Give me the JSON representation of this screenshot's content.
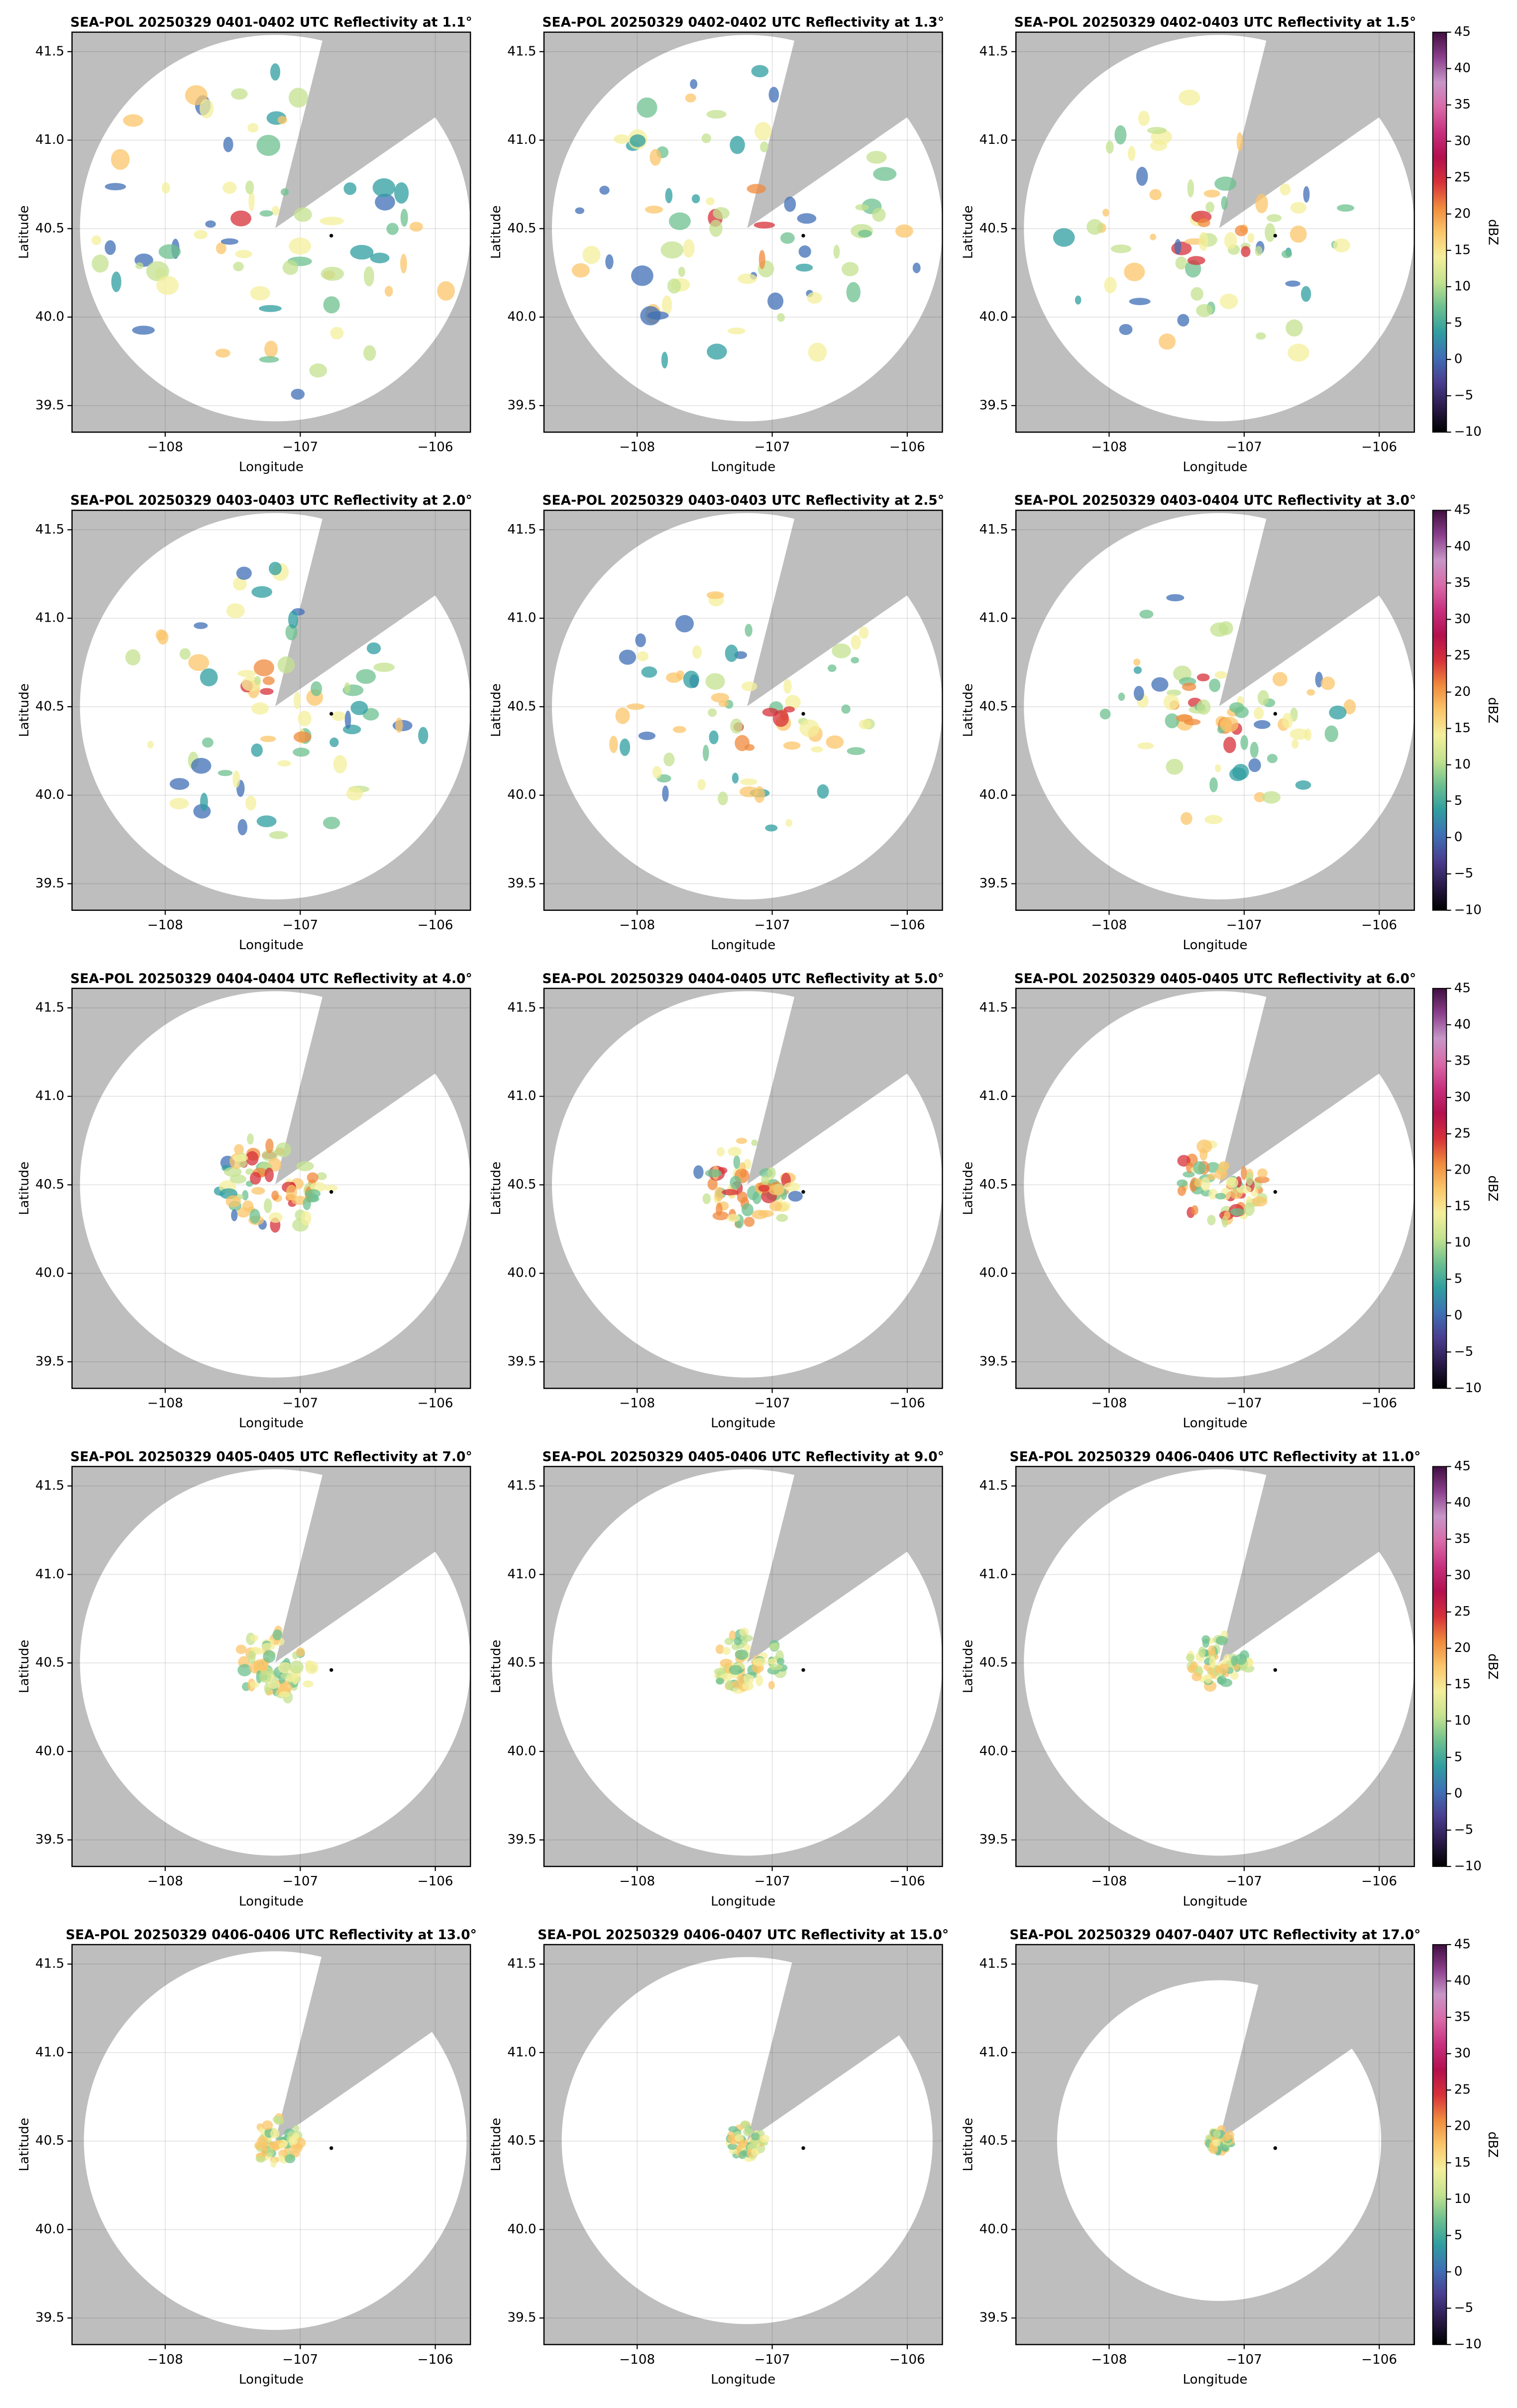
{
  "chart_data": [
    {
      "type": "ppi",
      "title": "SEA-POL 20250329 0401-0402 UTC Reflectivity at 1.1°",
      "xlabel": "Longitude",
      "ylabel": "Latitude",
      "xlim": [
        -108.69,
        -105.74
      ],
      "ylim": [
        39.35,
        41.61
      ],
      "xticks": [
        {
          "value": -108,
          "label": "−108"
        },
        {
          "value": -107,
          "label": "−107"
        },
        {
          "value": -106,
          "label": "−106"
        }
      ],
      "yticks": [
        39.5,
        {
          "value": 40,
          "label": "40.0"
        },
        40.5,
        {
          "value": 41,
          "label": "41.0"
        },
        41.5
      ],
      "grid": true,
      "marker": {
        "x": -106.77,
        "y": 40.46
      }
    },
    {
      "type": "ppi",
      "title": "SEA-POL 20250329 0402-0402 UTC Reflectivity at 1.3°",
      "xlabel": "Longitude",
      "ylabel": "Latitude",
      "xlim": [
        -108.69,
        -105.74
      ],
      "ylim": [
        39.35,
        41.61
      ],
      "xticks": [
        {
          "value": -108,
          "label": "−108"
        },
        {
          "value": -107,
          "label": "−107"
        },
        {
          "value": -106,
          "label": "−106"
        }
      ],
      "yticks": [
        39.5,
        {
          "value": 40,
          "label": "40.0"
        },
        40.5,
        {
          "value": 41,
          "label": "41.0"
        },
        41.5
      ],
      "grid": true,
      "marker": {
        "x": -106.77,
        "y": 40.46
      }
    },
    {
      "type": "ppi",
      "title": "SEA-POL 20250329 0402-0403 UTC Reflectivity at 1.5°",
      "xlabel": "Longitude",
      "ylabel": "Latitude",
      "xlim": [
        -108.69,
        -105.74
      ],
      "ylim": [
        39.35,
        41.61
      ],
      "xticks": [
        {
          "value": -108,
          "label": "−108"
        },
        {
          "value": -107,
          "label": "−107"
        },
        {
          "value": -106,
          "label": "−106"
        }
      ],
      "yticks": [
        39.5,
        {
          "value": 40,
          "label": "40.0"
        },
        40.5,
        {
          "value": 41,
          "label": "41.0"
        },
        41.5
      ],
      "grid": true,
      "marker": {
        "x": -106.77,
        "y": 40.46
      },
      "colorbar": {
        "label": "dBZ",
        "lim": [
          -10,
          45
        ],
        "ticks": [
          {
            "value": -10,
            "label": "−10"
          },
          {
            "value": -5,
            "label": "−5"
          },
          0,
          5,
          10,
          15,
          20,
          25,
          30,
          35,
          40,
          45
        ],
        "colormap": [
          "#000000",
          "#2a1a4a",
          "#4a3d8f",
          "#3f6fb5",
          "#2f9ea0",
          "#6cc08f",
          "#c3e28f",
          "#f4ef9b",
          "#fbc56a",
          "#f08a3c",
          "#d7303a",
          "#b3104f",
          "#c7307e",
          "#d96aa8",
          "#c796c8",
          "#8c3f8c",
          "#3f0f3f"
        ]
      }
    },
    {
      "type": "ppi",
      "title": "SEA-POL 20250329 0403-0403 UTC Reflectivity at 2.0°",
      "xlabel": "Longitude",
      "ylabel": "Latitude",
      "xlim": [
        -108.69,
        -105.74
      ],
      "ylim": [
        39.35,
        41.61
      ],
      "xticks": [
        {
          "value": -108,
          "label": "−108"
        },
        {
          "value": -107,
          "label": "−107"
        },
        {
          "value": -106,
          "label": "−106"
        }
      ],
      "yticks": [
        39.5,
        {
          "value": 40,
          "label": "40.0"
        },
        40.5,
        {
          "value": 41,
          "label": "41.0"
        },
        41.5
      ],
      "grid": true,
      "marker": {
        "x": -106.77,
        "y": 40.46
      }
    },
    {
      "type": "ppi",
      "title": "SEA-POL 20250329 0403-0403 UTC Reflectivity at 2.5°",
      "xlabel": "Longitude",
      "ylabel": "Latitude",
      "xlim": [
        -108.69,
        -105.74
      ],
      "ylim": [
        39.35,
        41.61
      ],
      "xticks": [
        {
          "value": -108,
          "label": "−108"
        },
        {
          "value": -107,
          "label": "−107"
        },
        {
          "value": -106,
          "label": "−106"
        }
      ],
      "yticks": [
        39.5,
        {
          "value": 40,
          "label": "40.0"
        },
        40.5,
        {
          "value": 41,
          "label": "41.0"
        },
        41.5
      ],
      "grid": true,
      "marker": {
        "x": -106.77,
        "y": 40.46
      }
    },
    {
      "type": "ppi",
      "title": "SEA-POL 20250329 0403-0404 UTC Reflectivity at 3.0°",
      "xlabel": "Longitude",
      "ylabel": "Latitude",
      "xlim": [
        -108.69,
        -105.74
      ],
      "ylim": [
        39.35,
        41.61
      ],
      "xticks": [
        {
          "value": -108,
          "label": "−108"
        },
        {
          "value": -107,
          "label": "−107"
        },
        {
          "value": -106,
          "label": "−106"
        }
      ],
      "yticks": [
        39.5,
        {
          "value": 40,
          "label": "40.0"
        },
        40.5,
        {
          "value": 41,
          "label": "41.0"
        },
        41.5
      ],
      "grid": true,
      "marker": {
        "x": -106.77,
        "y": 40.46
      },
      "colorbar": {
        "label": "dBZ",
        "lim": [
          -10,
          45
        ],
        "ticks": [
          {
            "value": -10,
            "label": "−10"
          },
          {
            "value": -5,
            "label": "−5"
          },
          0,
          5,
          10,
          15,
          20,
          25,
          30,
          35,
          40,
          45
        ],
        "colormap": [
          "#000000",
          "#2a1a4a",
          "#4a3d8f",
          "#3f6fb5",
          "#2f9ea0",
          "#6cc08f",
          "#c3e28f",
          "#f4ef9b",
          "#fbc56a",
          "#f08a3c",
          "#d7303a",
          "#b3104f",
          "#c7307e",
          "#d96aa8",
          "#c796c8",
          "#8c3f8c",
          "#3f0f3f"
        ]
      }
    },
    {
      "type": "ppi",
      "title": "SEA-POL 20250329 0404-0404 UTC Reflectivity at 4.0°",
      "xlabel": "Longitude",
      "ylabel": "Latitude",
      "xlim": [
        -108.69,
        -105.74
      ],
      "ylim": [
        39.35,
        41.61
      ],
      "xticks": [
        {
          "value": -108,
          "label": "−108"
        },
        {
          "value": -107,
          "label": "−107"
        },
        {
          "value": -106,
          "label": "−106"
        }
      ],
      "yticks": [
        39.5,
        {
          "value": 40,
          "label": "40.0"
        },
        40.5,
        {
          "value": 41,
          "label": "41.0"
        },
        41.5
      ],
      "grid": true,
      "marker": {
        "x": -106.77,
        "y": 40.46
      }
    },
    {
      "type": "ppi",
      "title": "SEA-POL 20250329 0404-0405 UTC Reflectivity at 5.0°",
      "xlabel": "Longitude",
      "ylabel": "Latitude",
      "xlim": [
        -108.69,
        -105.74
      ],
      "ylim": [
        39.35,
        41.61
      ],
      "xticks": [
        {
          "value": -108,
          "label": "−108"
        },
        {
          "value": -107,
          "label": "−107"
        },
        {
          "value": -106,
          "label": "−106"
        }
      ],
      "yticks": [
        39.5,
        {
          "value": 40,
          "label": "40.0"
        },
        40.5,
        {
          "value": 41,
          "label": "41.0"
        },
        41.5
      ],
      "grid": true,
      "marker": {
        "x": -106.77,
        "y": 40.46
      }
    },
    {
      "type": "ppi",
      "title": "SEA-POL 20250329 0405-0405 UTC Reflectivity at 6.0°",
      "xlabel": "Longitude",
      "ylabel": "Latitude",
      "xlim": [
        -108.69,
        -105.74
      ],
      "ylim": [
        39.35,
        41.61
      ],
      "xticks": [
        {
          "value": -108,
          "label": "−108"
        },
        {
          "value": -107,
          "label": "−107"
        },
        {
          "value": -106,
          "label": "−106"
        }
      ],
      "yticks": [
        39.5,
        {
          "value": 40,
          "label": "40.0"
        },
        40.5,
        {
          "value": 41,
          "label": "41.0"
        },
        41.5
      ],
      "grid": true,
      "marker": {
        "x": -106.77,
        "y": 40.46
      },
      "colorbar": {
        "label": "dBZ",
        "lim": [
          -10,
          45
        ],
        "ticks": [
          {
            "value": -10,
            "label": "−10"
          },
          {
            "value": -5,
            "label": "−5"
          },
          0,
          5,
          10,
          15,
          20,
          25,
          30,
          35,
          40,
          45
        ],
        "colormap": [
          "#000000",
          "#2a1a4a",
          "#4a3d8f",
          "#3f6fb5",
          "#2f9ea0",
          "#6cc08f",
          "#c3e28f",
          "#f4ef9b",
          "#fbc56a",
          "#f08a3c",
          "#d7303a",
          "#b3104f",
          "#c7307e",
          "#d96aa8",
          "#c796c8",
          "#8c3f8c",
          "#3f0f3f"
        ]
      }
    },
    {
      "type": "ppi",
      "title": "SEA-POL 20250329 0405-0405 UTC Reflectivity at 7.0°",
      "xlabel": "Longitude",
      "ylabel": "Latitude",
      "xlim": [
        -108.69,
        -105.74
      ],
      "ylim": [
        39.35,
        41.61
      ],
      "xticks": [
        {
          "value": -108,
          "label": "−108"
        },
        {
          "value": -107,
          "label": "−107"
        },
        {
          "value": -106,
          "label": "−106"
        }
      ],
      "yticks": [
        39.5,
        {
          "value": 40,
          "label": "40.0"
        },
        40.5,
        {
          "value": 41,
          "label": "41.0"
        },
        41.5
      ],
      "grid": true,
      "marker": {
        "x": -106.77,
        "y": 40.46
      }
    },
    {
      "type": "ppi",
      "title": "SEA-POL 20250329 0405-0406 UTC Reflectivity at 9.0°",
      "xlabel": "Longitude",
      "ylabel": "Latitude",
      "xlim": [
        -108.69,
        -105.74
      ],
      "ylim": [
        39.35,
        41.61
      ],
      "xticks": [
        {
          "value": -108,
          "label": "−108"
        },
        {
          "value": -107,
          "label": "−107"
        },
        {
          "value": -106,
          "label": "−106"
        }
      ],
      "yticks": [
        39.5,
        {
          "value": 40,
          "label": "40.0"
        },
        40.5,
        {
          "value": 41,
          "label": "41.0"
        },
        41.5
      ],
      "grid": true,
      "marker": {
        "x": -106.77,
        "y": 40.46
      }
    },
    {
      "type": "ppi",
      "title": "SEA-POL 20250329 0406-0406 UTC Reflectivity at 11.0°",
      "xlabel": "Longitude",
      "ylabel": "Latitude",
      "xlim": [
        -108.69,
        -105.74
      ],
      "ylim": [
        39.35,
        41.61
      ],
      "xticks": [
        {
          "value": -108,
          "label": "−108"
        },
        {
          "value": -107,
          "label": "−107"
        },
        {
          "value": -106,
          "label": "−106"
        }
      ],
      "yticks": [
        39.5,
        {
          "value": 40,
          "label": "40.0"
        },
        40.5,
        {
          "value": 41,
          "label": "41.0"
        },
        41.5
      ],
      "grid": true,
      "marker": {
        "x": -106.77,
        "y": 40.46
      },
      "colorbar": {
        "label": "dBZ",
        "lim": [
          -10,
          45
        ],
        "ticks": [
          {
            "value": -10,
            "label": "−10"
          },
          {
            "value": -5,
            "label": "−5"
          },
          0,
          5,
          10,
          15,
          20,
          25,
          30,
          35,
          40,
          45
        ],
        "colormap": [
          "#000000",
          "#2a1a4a",
          "#4a3d8f",
          "#3f6fb5",
          "#2f9ea0",
          "#6cc08f",
          "#c3e28f",
          "#f4ef9b",
          "#fbc56a",
          "#f08a3c",
          "#d7303a",
          "#b3104f",
          "#c7307e",
          "#d96aa8",
          "#c796c8",
          "#8c3f8c",
          "#3f0f3f"
        ]
      }
    },
    {
      "type": "ppi",
      "title": "SEA-POL 20250329 0406-0406 UTC Reflectivity at 13.0°",
      "xlabel": "Longitude",
      "ylabel": "Latitude",
      "xlim": [
        -108.69,
        -105.74
      ],
      "ylim": [
        39.35,
        41.61
      ],
      "xticks": [
        {
          "value": -108,
          "label": "−108"
        },
        {
          "value": -107,
          "label": "−107"
        },
        {
          "value": -106,
          "label": "−106"
        }
      ],
      "yticks": [
        39.5,
        {
          "value": 40,
          "label": "40.0"
        },
        40.5,
        {
          "value": 41,
          "label": "41.0"
        },
        41.5
      ],
      "grid": true,
      "marker": {
        "x": -106.77,
        "y": 40.46
      }
    },
    {
      "type": "ppi",
      "title": "SEA-POL 20250329 0406-0407 UTC Reflectivity at 15.0°",
      "xlabel": "Longitude",
      "ylabel": "Latitude",
      "xlim": [
        -108.69,
        -105.74
      ],
      "ylim": [
        39.35,
        41.61
      ],
      "xticks": [
        {
          "value": -108,
          "label": "−108"
        },
        {
          "value": -107,
          "label": "−107"
        },
        {
          "value": -106,
          "label": "−106"
        }
      ],
      "yticks": [
        39.5,
        {
          "value": 40,
          "label": "40.0"
        },
        40.5,
        {
          "value": 41,
          "label": "41.0"
        },
        41.5
      ],
      "grid": true,
      "marker": {
        "x": -106.77,
        "y": 40.46
      }
    },
    {
      "type": "ppi",
      "title": "SEA-POL 20250329 0407-0407 UTC Reflectivity at 17.0°",
      "xlabel": "Longitude",
      "ylabel": "Latitude",
      "xlim": [
        -108.69,
        -105.74
      ],
      "ylim": [
        39.35,
        41.61
      ],
      "xticks": [
        {
          "value": -108,
          "label": "−108"
        },
        {
          "value": -107,
          "label": "−107"
        },
        {
          "value": -106,
          "label": "−106"
        }
      ],
      "yticks": [
        39.5,
        {
          "value": 40,
          "label": "40.0"
        },
        40.5,
        {
          "value": 41,
          "label": "41.0"
        },
        41.5
      ],
      "grid": true,
      "marker": {
        "x": -106.77,
        "y": 40.46
      },
      "colorbar": {
        "label": "dBZ",
        "lim": [
          -10,
          45
        ],
        "ticks": [
          {
            "value": -10,
            "label": "−10"
          },
          {
            "value": -5,
            "label": "−5"
          },
          0,
          5,
          10,
          15,
          20,
          25,
          30,
          35,
          40,
          45
        ],
        "colormap": [
          "#000000",
          "#2a1a4a",
          "#4a3d8f",
          "#3f6fb5",
          "#2f9ea0",
          "#6cc08f",
          "#c3e28f",
          "#f4ef9b",
          "#fbc56a",
          "#f08a3c",
          "#d7303a",
          "#b3104f",
          "#c7307e",
          "#d96aa8",
          "#c796c8",
          "#8c3f8c",
          "#3f0f3f"
        ]
      }
    }
  ]
}
